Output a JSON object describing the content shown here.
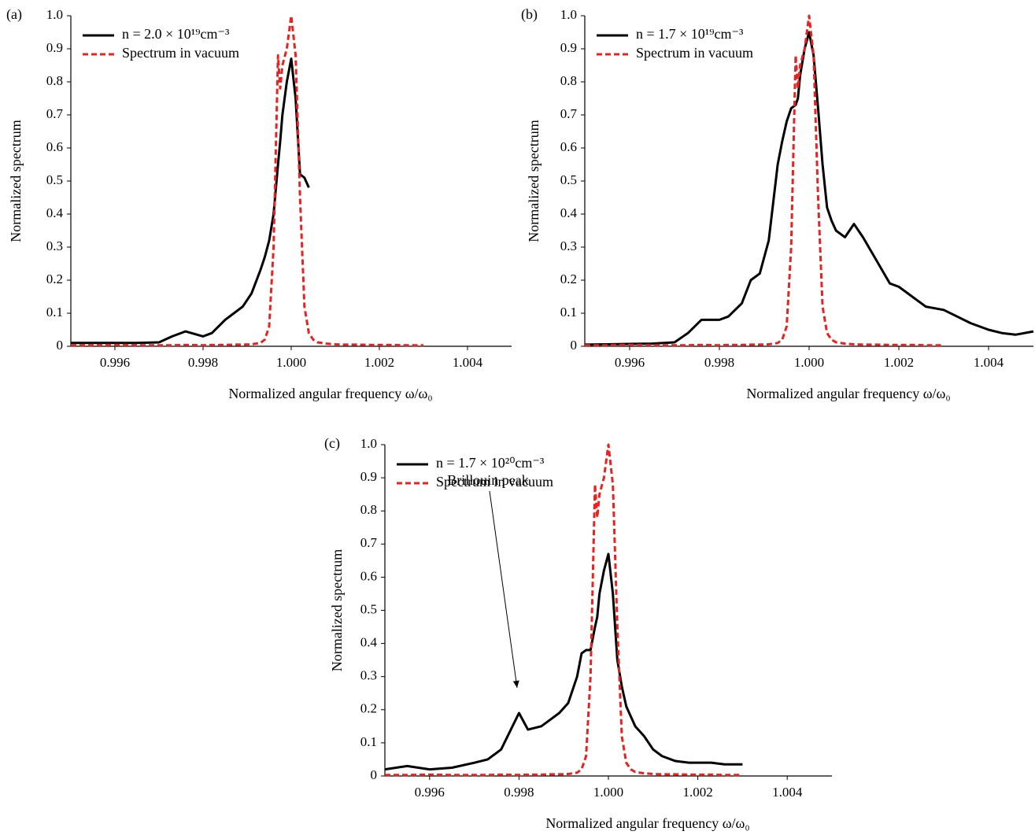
{
  "chart_data": [
    {
      "type": "line",
      "panel_label": "(a)",
      "x_label": "Normalized angular frequency  ω/ω₀",
      "y_label": "Normalized spectrum",
      "x": [
        0.995,
        0.9955,
        0.996,
        0.9965,
        0.997,
        0.9973,
        0.9976,
        0.998,
        0.9982,
        0.9985,
        0.9987,
        0.9989,
        0.9991,
        0.9993,
        0.9994,
        0.9995,
        0.9996,
        0.9997,
        0.99975,
        0.9998,
        0.9999,
        1.0,
        1.0001,
        1.0002,
        1.0003,
        1.0004,
        1.0005,
        1.0006,
        1.0008,
        1.001,
        1.0012,
        1.0015,
        1.0018,
        1.002,
        1.0023,
        1.0026,
        1.003,
        1.0033,
        1.0036,
        1.004,
        1.0043,
        1.0046,
        1.005
      ],
      "series": [
        {
          "name": "n = 2.0 × 10¹⁹cm⁻³",
          "color": "#000000",
          "line_style": "solid",
          "values": [
            0.01,
            0.01,
            0.01,
            0.01,
            0.012,
            0.03,
            0.045,
            0.03,
            0.04,
            0.08,
            0.1,
            0.12,
            0.16,
            0.23,
            0.27,
            0.32,
            0.4,
            0.55,
            0.62,
            0.7,
            0.8,
            0.87,
            0.75,
            0.52,
            0.51,
            0.48,
            null,
            null,
            null,
            null,
            null,
            null,
            null,
            null,
            null,
            null,
            null,
            null,
            null,
            null,
            null,
            null,
            null
          ]
        },
        {
          "name": "Spectrum in vacuum",
          "color": "#e8221f",
          "line_style": "dashed",
          "values": [
            0.003,
            0.003,
            0.004,
            0.003,
            0.003,
            0.003,
            0.004,
            0.003,
            0.004,
            0.004,
            0.005,
            0.005,
            0.006,
            0.01,
            0.02,
            0.06,
            0.3,
            0.88,
            0.78,
            0.85,
            0.9,
            1.0,
            0.88,
            0.45,
            0.12,
            0.04,
            0.02,
            0.012,
            0.008,
            0.006,
            0.005,
            0.005,
            0.004,
            0.004,
            0.004,
            0.003,
            0.003,
            null,
            null,
            null,
            null,
            null,
            null
          ]
        }
      ],
      "xlim": [
        0.995,
        1.005
      ],
      "xticks": [
        0.996,
        0.998,
        {
          "value": 1,
          "label": "1.000"
        },
        1.002,
        1.004
      ],
      "ylim": [
        0,
        1
      ],
      "yticks": [
        0,
        0.1,
        0.2,
        0.3,
        0.4,
        0.5,
        0.6,
        0.7,
        0.8,
        0.9,
        {
          "value": 1,
          "label": "1.0"
        }
      ],
      "legend": "upper left"
    },
    {
      "type": "line",
      "panel_label": "(b)",
      "x_label": "Normalized angular frequency  ω/ω₀",
      "y_label": "Normalized spectrum",
      "x": [
        0.995,
        0.9955,
        0.996,
        0.9965,
        0.997,
        0.9973,
        0.9976,
        0.998,
        0.9982,
        0.9985,
        0.9987,
        0.9989,
        0.9991,
        0.9993,
        0.9994,
        0.9995,
        0.9996,
        0.9997,
        0.99975,
        0.9998,
        0.9999,
        1.0,
        1.0001,
        1.0002,
        1.0003,
        1.0004,
        1.0005,
        1.0006,
        1.0008,
        1.001,
        1.0012,
        1.0015,
        1.0018,
        1.002,
        1.0023,
        1.0026,
        1.003,
        1.0033,
        1.0036,
        1.004,
        1.0043,
        1.0046,
        1.005
      ],
      "series": [
        {
          "name": "n = 1.7 × 10¹⁹cm⁻³",
          "color": "#000000",
          "line_style": "solid",
          "values": [
            0.005,
            0.006,
            0.007,
            0.008,
            0.012,
            0.04,
            0.08,
            0.08,
            0.09,
            0.13,
            0.2,
            0.22,
            0.32,
            0.55,
            0.62,
            0.68,
            0.72,
            0.73,
            0.75,
            0.82,
            0.9,
            0.95,
            0.88,
            0.72,
            0.55,
            0.42,
            0.38,
            0.35,
            0.33,
            0.37,
            0.33,
            0.26,
            0.19,
            0.18,
            0.15,
            0.12,
            0.11,
            0.09,
            0.07,
            0.05,
            0.04,
            0.035,
            0.045
          ]
        },
        {
          "name": "Spectrum in vacuum",
          "color": "#e8221f",
          "line_style": "dashed",
          "values": [
            0.003,
            0.003,
            0.004,
            0.003,
            0.003,
            0.003,
            0.004,
            0.003,
            0.004,
            0.004,
            0.005,
            0.005,
            0.006,
            0.01,
            0.02,
            0.06,
            0.3,
            0.88,
            0.78,
            0.85,
            0.9,
            1.0,
            0.88,
            0.45,
            0.12,
            0.04,
            0.02,
            0.012,
            0.008,
            0.006,
            0.005,
            0.005,
            0.004,
            0.004,
            0.004,
            0.003,
            0.003,
            null,
            null,
            null,
            null,
            null,
            null
          ]
        }
      ],
      "xlim": [
        0.995,
        1.005
      ],
      "xticks": [
        0.996,
        0.998,
        {
          "value": 1,
          "label": "1.000"
        },
        1.002,
        1.004
      ],
      "ylim": [
        0,
        1
      ],
      "yticks": [
        0,
        0.1,
        0.2,
        0.3,
        0.4,
        0.5,
        0.6,
        0.7,
        0.8,
        0.9,
        {
          "value": 1,
          "label": "1.0"
        }
      ],
      "legend": "upper left"
    },
    {
      "type": "line",
      "panel_label": "(c)",
      "x_label": "Normalized angular frequency  ω/ω₀",
      "y_label": "Normalized spectrum",
      "x": [
        0.995,
        0.9955,
        0.996,
        0.9965,
        0.997,
        0.9973,
        0.9976,
        0.998,
        0.9982,
        0.9985,
        0.9987,
        0.9989,
        0.9991,
        0.9993,
        0.9994,
        0.9995,
        0.9996,
        0.9997,
        0.99975,
        0.9998,
        0.9999,
        1.0,
        1.0001,
        1.0002,
        1.0003,
        1.0004,
        1.0005,
        1.0006,
        1.0008,
        1.001,
        1.0012,
        1.0015,
        1.0018,
        1.002,
        1.0023,
        1.0026,
        1.003,
        1.0033,
        1.0036,
        1.004,
        1.0043,
        1.0046,
        1.005
      ],
      "series": [
        {
          "name": "n = 1.7 × 10²⁰cm⁻³",
          "color": "#000000",
          "line_style": "solid",
          "values": [
            0.02,
            0.03,
            0.02,
            0.025,
            0.04,
            0.05,
            0.08,
            0.19,
            0.14,
            0.15,
            0.17,
            0.19,
            0.22,
            0.3,
            0.37,
            0.38,
            0.38,
            0.45,
            0.48,
            0.55,
            0.62,
            0.67,
            0.55,
            0.35,
            0.27,
            0.21,
            0.18,
            0.15,
            0.12,
            0.08,
            0.06,
            0.045,
            0.04,
            0.04,
            0.04,
            0.035,
            0.035,
            null,
            null,
            null,
            null,
            null,
            null
          ]
        },
        {
          "name": "Spectrum in vacuum",
          "color": "#e8221f",
          "line_style": "dashed",
          "values": [
            0.003,
            0.003,
            0.004,
            0.003,
            0.003,
            0.003,
            0.004,
            0.003,
            0.004,
            0.004,
            0.005,
            0.005,
            0.006,
            0.01,
            0.02,
            0.06,
            0.3,
            0.88,
            0.78,
            0.85,
            0.9,
            1.0,
            0.88,
            0.45,
            0.12,
            0.04,
            0.02,
            0.012,
            0.008,
            0.006,
            0.005,
            0.005,
            0.004,
            0.004,
            0.004,
            0.003,
            0.003,
            null,
            null,
            null,
            null,
            null,
            null
          ]
        }
      ],
      "xlim": [
        0.995,
        1.005
      ],
      "xticks": [
        0.996,
        0.998,
        {
          "value": 1,
          "label": "1.000"
        },
        1.002,
        1.004
      ],
      "ylim": [
        0,
        1
      ],
      "yticks": [
        0,
        0.1,
        0.2,
        0.3,
        0.4,
        0.5,
        0.6,
        0.7,
        0.8,
        0.9,
        {
          "value": 1,
          "label": "1.0"
        }
      ],
      "legend": "upper left",
      "annotations": [
        {
          "text": "Brillouin peak"
        }
      ]
    }
  ]
}
